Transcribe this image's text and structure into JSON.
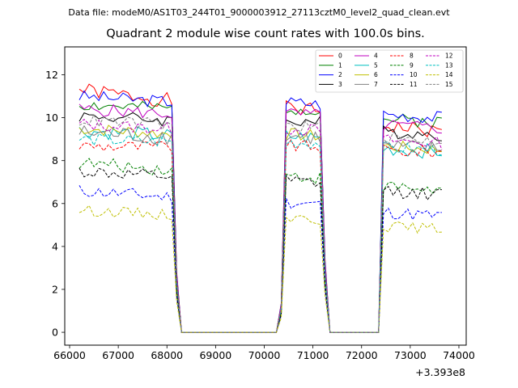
{
  "figure": {
    "suptitle": "Data file: modeM0/AS1T03_244T01_9000003912_27113cztM0_level2_quad_clean.evt"
  },
  "chart_data": {
    "type": "line",
    "title": "Quadrant 2 module wise count rates with 100.0s bins.",
    "xlabel": "",
    "ylabel": "",
    "x_offset_label": "+3.393e8",
    "xlim": [
      65900,
      74150
    ],
    "ylim": [
      -0.6,
      13.3
    ],
    "x_ticks": [
      66000,
      67000,
      68000,
      69000,
      70000,
      71000,
      72000,
      73000,
      74000
    ],
    "x_tick_labels": [
      "66000",
      "67000",
      "68000",
      "69000",
      "70000",
      "71000",
      "72000",
      "73000",
      "74000"
    ],
    "y_ticks": [
      0,
      2,
      4,
      6,
      8,
      10,
      12
    ],
    "y_tick_labels": [
      "0",
      "2",
      "4",
      "6",
      "8",
      "10",
      "12"
    ],
    "grid": false,
    "legend_position": "top-right",
    "legend_columns": 4,
    "segments": [
      {
        "start": 66200,
        "end": 68100,
        "ramp_end": 68300
      },
      {
        "start": 70450,
        "end": 71150,
        "ramp_start": 70250,
        "ramp_end": 71350
      },
      {
        "start": 72450,
        "end": 73700,
        "ramp_start": 72350
      }
    ],
    "gap_level": 0,
    "series": [
      {
        "name": "0",
        "color": "#ff0000",
        "dash": "solid",
        "level": 11.3,
        "trend": -2.0,
        "amp": 0.35,
        "seed": 1
      },
      {
        "name": "1",
        "color": "#008000",
        "dash": "solid",
        "level": 10.6,
        "trend": -0.8,
        "amp": 0.3,
        "seed": 2
      },
      {
        "name": "2",
        "color": "#0000ff",
        "dash": "solid",
        "level": 11.0,
        "trend": -1.0,
        "amp": 0.3,
        "seed": 3
      },
      {
        "name": "3",
        "color": "#000000",
        "dash": "solid",
        "level": 10.1,
        "trend": -0.9,
        "amp": 0.3,
        "seed": 4
      },
      {
        "name": "4",
        "color": "#bf00bf",
        "dash": "solid",
        "level": 10.4,
        "trend": -0.9,
        "amp": 0.3,
        "seed": 5
      },
      {
        "name": "5",
        "color": "#00bfbf",
        "dash": "solid",
        "level": 9.4,
        "trend": -1.0,
        "amp": 0.35,
        "seed": 6
      },
      {
        "name": "6",
        "color": "#bfbf00",
        "dash": "solid",
        "level": 9.5,
        "trend": -1.0,
        "amp": 0.3,
        "seed": 7
      },
      {
        "name": "7",
        "color": "#808080",
        "dash": "solid",
        "level": 9.3,
        "trend": -0.8,
        "amp": 0.4,
        "seed": 8
      },
      {
        "name": "8",
        "color": "#ff0000",
        "dash": "dashed",
        "level": 8.7,
        "trend": -0.3,
        "amp": 0.3,
        "seed": 9
      },
      {
        "name": "9",
        "color": "#008000",
        "dash": "dashed",
        "level": 7.9,
        "trend": -1.3,
        "amp": 0.3,
        "seed": 10
      },
      {
        "name": "10",
        "color": "#0000ff",
        "dash": "dashed",
        "level": 6.6,
        "trend": -1.2,
        "amp": 0.3,
        "seed": 11
      },
      {
        "name": "11",
        "color": "#000000",
        "dash": "dashed",
        "level": 7.5,
        "trend": -1.1,
        "amp": 0.3,
        "seed": 12
      },
      {
        "name": "12",
        "color": "#bf00bf",
        "dash": "dashed",
        "level": 9.7,
        "trend": -0.9,
        "amp": 0.3,
        "seed": 13
      },
      {
        "name": "13",
        "color": "#00bfbf",
        "dash": "dashed",
        "level": 9.0,
        "trend": -0.5,
        "amp": 0.3,
        "seed": 14
      },
      {
        "name": "14",
        "color": "#bfbf00",
        "dash": "dashed",
        "level": 5.7,
        "trend": -0.9,
        "amp": 0.25,
        "seed": 15
      },
      {
        "name": "15",
        "color": "#808080",
        "dash": "dashed",
        "level": 9.9,
        "trend": -1.0,
        "amp": 0.3,
        "seed": 16
      }
    ]
  }
}
